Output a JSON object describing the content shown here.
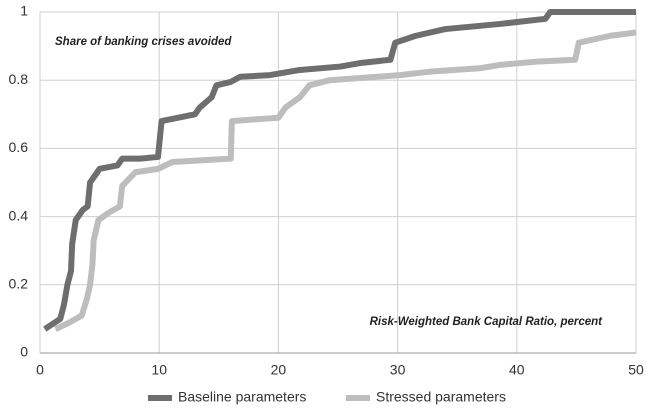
{
  "chart_data": {
    "type": "line",
    "annotations": [
      "Share of banking crises avoided",
      "Risk-Weighted Bank Capital Ratio, percent"
    ],
    "xlim": [
      0,
      50
    ],
    "xticks": [
      0,
      10,
      20,
      30,
      40,
      50
    ],
    "ylim": [
      0,
      1
    ],
    "yticks": [
      0,
      0.2,
      0.4,
      0.6,
      0.8,
      1
    ],
    "grid": true,
    "legend": "bottom",
    "series": [
      {
        "name": "Baseline parameters",
        "color": "#6e6e6e",
        "x": [
          0.4,
          1.7,
          2,
          2.3,
          2.6,
          2.7,
          3,
          3.6,
          4,
          4.2,
          5,
          6.5,
          6.9,
          8.4,
          9.9,
          10.2,
          13,
          13.4,
          14.4,
          14.8,
          16,
          16.8,
          19.3,
          21.8,
          25.2,
          26.8,
          29.4,
          29.8,
          31.5,
          34,
          38.6,
          42.4,
          42.8,
          50
        ],
        "values": [
          0.07,
          0.1,
          0.14,
          0.2,
          0.24,
          0.32,
          0.39,
          0.42,
          0.43,
          0.5,
          0.54,
          0.55,
          0.57,
          0.57,
          0.575,
          0.68,
          0.7,
          0.72,
          0.75,
          0.785,
          0.795,
          0.81,
          0.815,
          0.83,
          0.84,
          0.85,
          0.86,
          0.91,
          0.93,
          0.95,
          0.965,
          0.98,
          1,
          1
        ]
      },
      {
        "name": "Stressed parameters",
        "color": "#bdbdbd",
        "x": [
          1.3,
          2.5,
          3.5,
          3.9,
          4.2,
          4.4,
          4.5,
          4.9,
          5.7,
          6.7,
          6.9,
          8,
          9.9,
          11.1,
          16,
          16.1,
          20,
          20.6,
          21.8,
          22.6,
          24.3,
          30.2,
          32.7,
          36.9,
          38.6,
          41.9,
          44.9,
          45.2,
          47.8,
          50
        ],
        "values": [
          0.07,
          0.09,
          0.11,
          0.155,
          0.2,
          0.26,
          0.33,
          0.39,
          0.41,
          0.43,
          0.49,
          0.53,
          0.54,
          0.56,
          0.57,
          0.68,
          0.69,
          0.72,
          0.75,
          0.785,
          0.8,
          0.815,
          0.825,
          0.835,
          0.845,
          0.855,
          0.86,
          0.91,
          0.93,
          0.94
        ]
      }
    ]
  }
}
